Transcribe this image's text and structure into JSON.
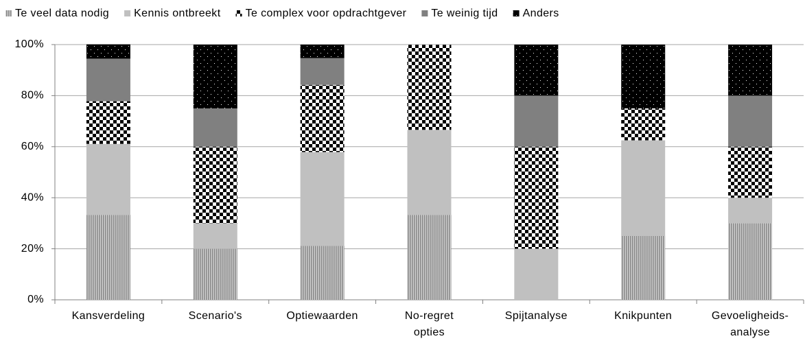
{
  "chart_data": {
    "type": "stacked_bar",
    "categories": [
      "Kansverdeling",
      "Scenario's",
      "Optiewaarden",
      "No-regret\nopties",
      "Spijtanalyse",
      "Knikpunten",
      "Gevoeligheids-\nanalyse"
    ],
    "series": [
      {
        "name": "Te veel data nodig",
        "color": "#8a8a8a",
        "values": [
          33.3,
          20,
          21.1,
          33.3,
          0,
          25,
          30
        ]
      },
      {
        "name": "Kennis ontbreekt",
        "color": "#c0c0c0",
        "values": [
          27.8,
          10,
          36.8,
          33.3,
          20,
          37.5,
          10
        ]
      },
      {
        "name": "Te complex voor opdrachtgever",
        "color": "#000000",
        "values": [
          16.7,
          30,
          26.3,
          33.3,
          40,
          12.5,
          20
        ]
      },
      {
        "name": "Te weinig tijd",
        "color": "#808080",
        "values": [
          16.7,
          15,
          10.5,
          0,
          20,
          0,
          20
        ]
      },
      {
        "name": "Anders",
        "color": "#000000",
        "values": [
          5.6,
          25,
          5.3,
          0,
          20,
          25,
          20
        ]
      }
    ],
    "ylim": [
      0,
      100
    ],
    "yticks": [
      {
        "value": 0,
        "label": "0%"
      },
      {
        "value": 20,
        "label": "20%"
      },
      {
        "value": 40,
        "label": "40%"
      },
      {
        "value": 60,
        "label": "60%"
      },
      {
        "value": 80,
        "label": "80%"
      },
      {
        "value": 100,
        "label": "100%"
      }
    ],
    "grid": true,
    "legend": "top"
  }
}
